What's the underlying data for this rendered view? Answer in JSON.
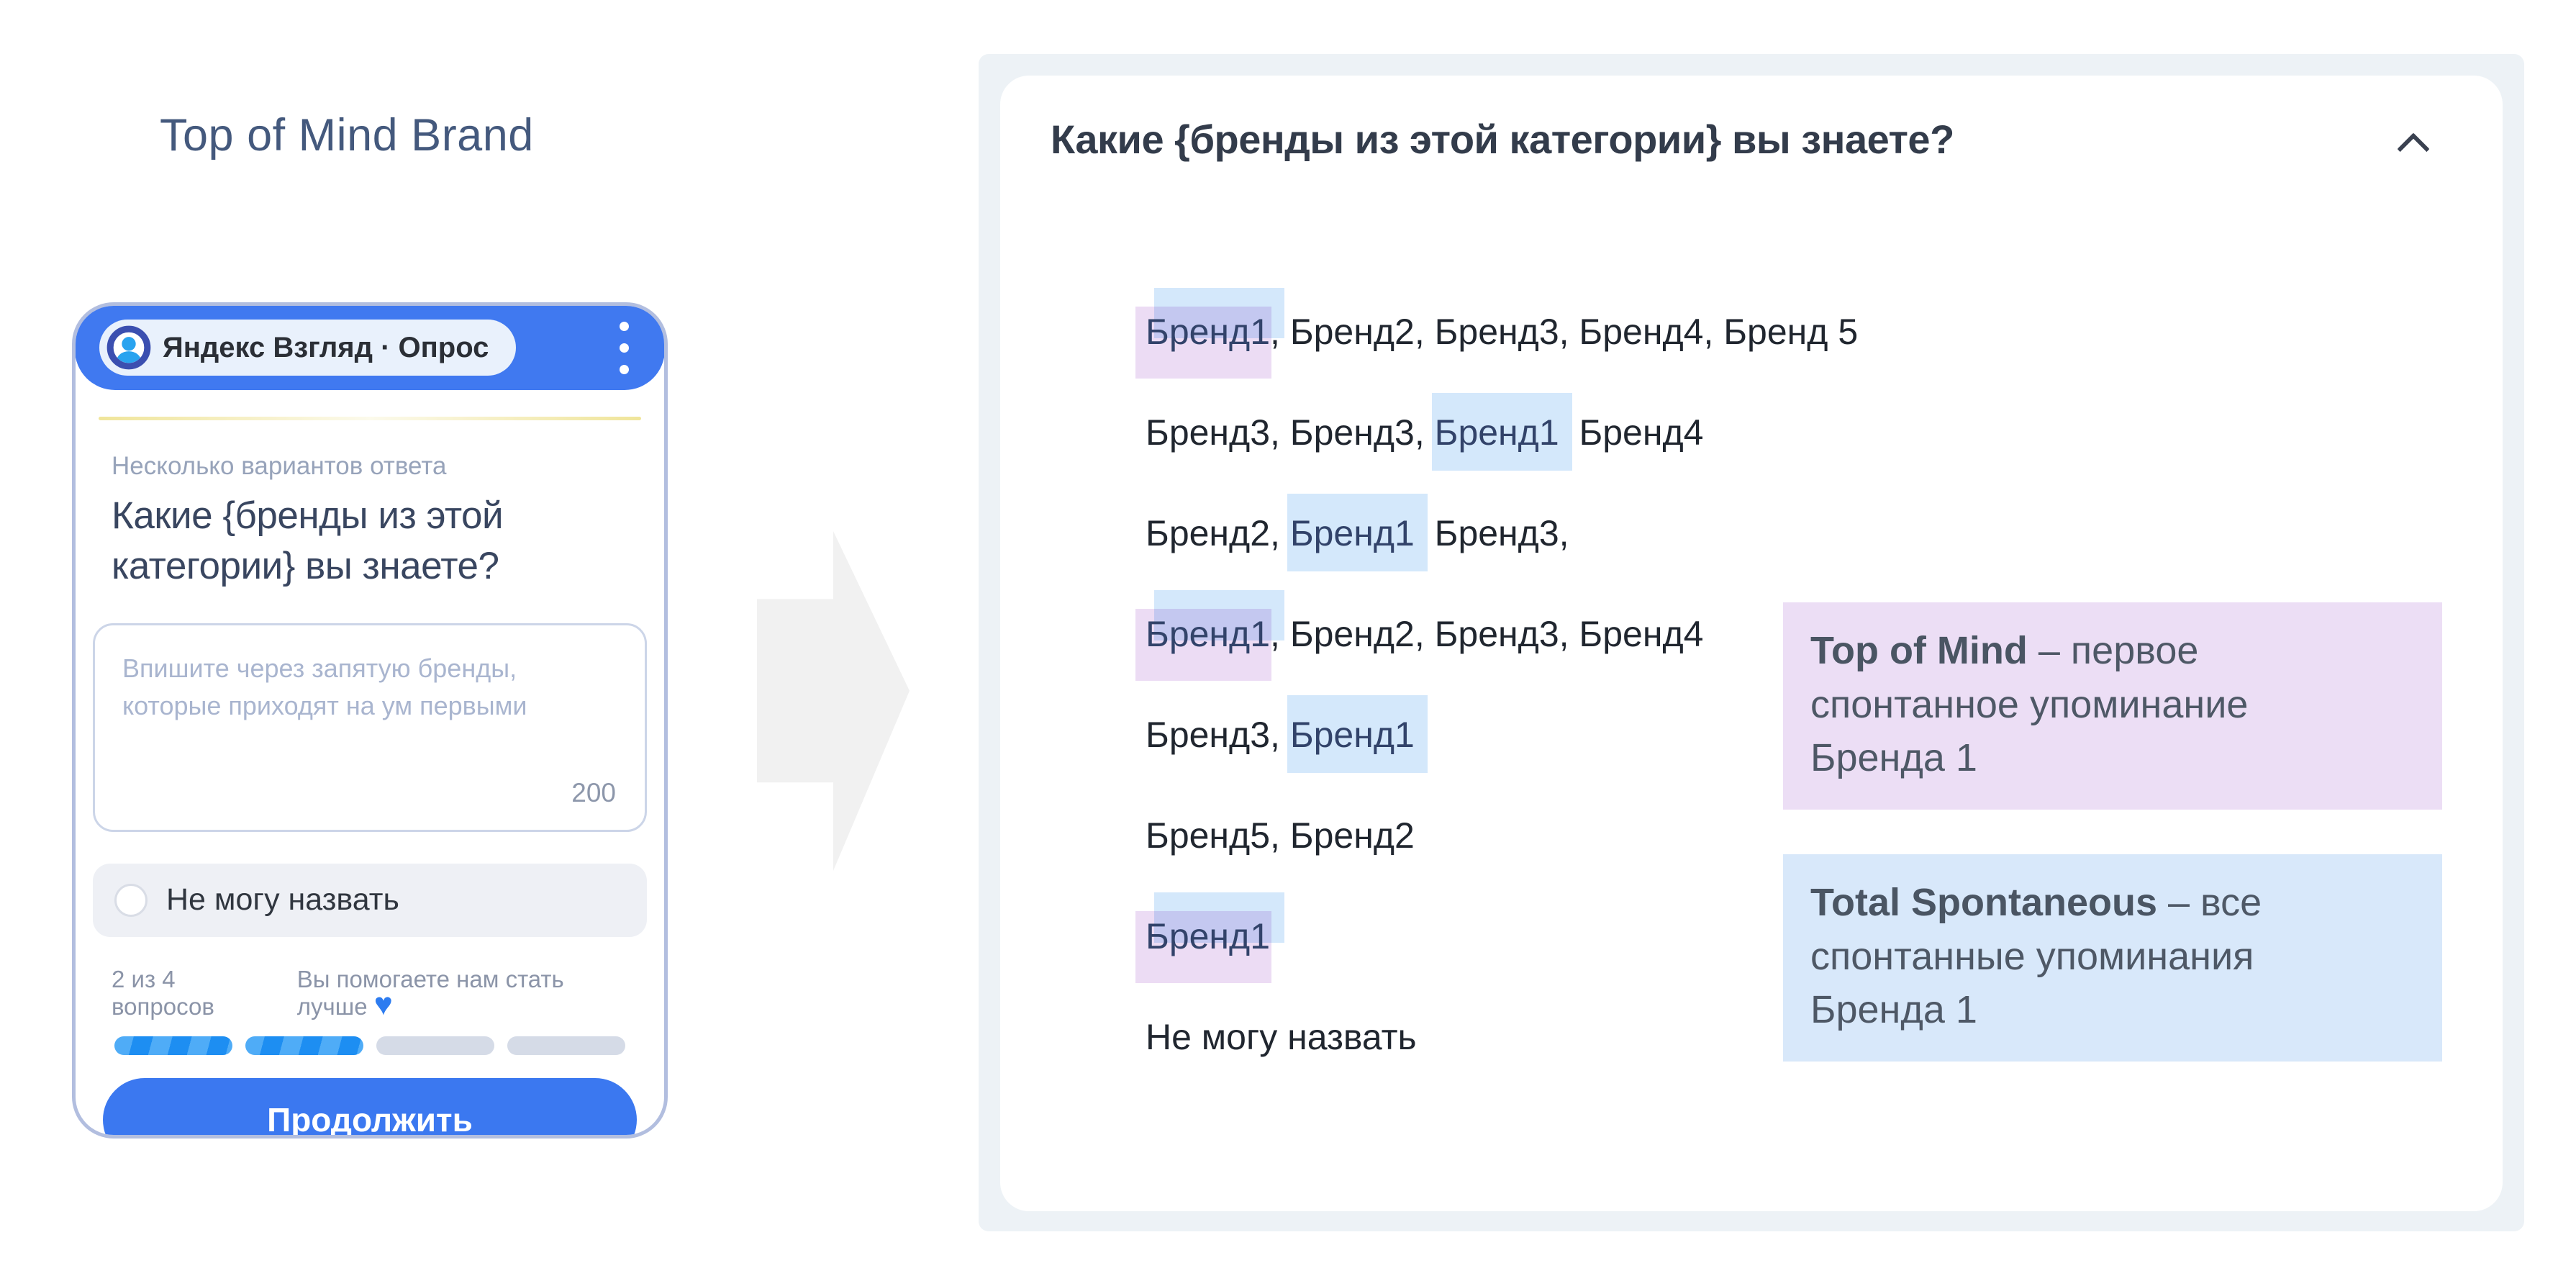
{
  "title": {
    "text": "Top of Mind Brand"
  },
  "phone": {
    "header": {
      "brand": "Яндекс Взгляд · Опрос",
      "menu_icon": "kebab-menu",
      "logo_icon": "yandex-vzglyad-avatar"
    },
    "question_meta": "Несколько вариантов ответа",
    "question": "Какие {бренды из этой категории} вы знаете?",
    "textarea": {
      "placeholder": "Впишите через запятую бренды, которые приходят на ум первыми",
      "counter": "200"
    },
    "cant_name_label": "Не могу назвать",
    "progress": {
      "step_label": "2 из 4 вопросов",
      "motivation": "Вы помогаете нам стать лучше",
      "heart_icon": "blue-heart",
      "segments_total": 4,
      "segments_done": 2
    },
    "continue_label": "Продолжить"
  },
  "arrow_icon": "right-block-arrow",
  "panel": {
    "question": "Какие {бренды из этой категории} вы знаете?",
    "collapse_icon": "chevron-up",
    "responses": [
      {
        "segments": [
          {
            "text": "Бренд1",
            "hl": "both"
          },
          {
            "text": ", Бренд2, Бренд3, Бренд4, Бренд 5",
            "hl": "none"
          }
        ]
      },
      {
        "segments": [
          {
            "text": "Бренд3, Бренд3, ",
            "hl": "none"
          },
          {
            "text": "Бренд1",
            "hl": "blue"
          },
          {
            "text": ", Бренд4",
            "hl": "none"
          }
        ]
      },
      {
        "segments": [
          {
            "text": "Бренд2, ",
            "hl": "none"
          },
          {
            "text": "Бренд1",
            "hl": "blue"
          },
          {
            "text": ", Бренд3,",
            "hl": "none"
          }
        ]
      },
      {
        "segments": [
          {
            "text": "Бренд1",
            "hl": "both"
          },
          {
            "text": ", Бренд2, Бренд3, Бренд4",
            "hl": "none"
          }
        ]
      },
      {
        "segments": [
          {
            "text": "Бренд3, ",
            "hl": "none"
          },
          {
            "text": "Бренд1",
            "hl": "blue"
          }
        ]
      },
      {
        "segments": [
          {
            "text": "Бренд5, Бренд2",
            "hl": "none"
          }
        ]
      },
      {
        "segments": [
          {
            "text": "Бренд1",
            "hl": "both"
          }
        ]
      },
      {
        "segments": [
          {
            "text": "Не могу назвать",
            "hl": "none"
          }
        ]
      }
    ],
    "notes": [
      {
        "bold": "Top of Mind",
        "rest": " – первое\nспонтанное упоминание\nБренда 1",
        "style": "purple"
      },
      {
        "bold": "Total Spontaneous",
        "rest": " – все\nспонтанные упоминания\nБренда 1",
        "style": "blue"
      }
    ]
  },
  "colors": {
    "accent_blue": "#4079f0",
    "highlight_blue": "#d4e8fb",
    "highlight_purple": "#ecdcf4",
    "note_purple_bg": "#ecdef5",
    "note_blue_bg": "#d8e8fa",
    "panel_bg": "#edf2f6",
    "title_color": "#44597d",
    "progress_done": "#1d8ef2",
    "progress_todo": "#d5dbe7"
  }
}
